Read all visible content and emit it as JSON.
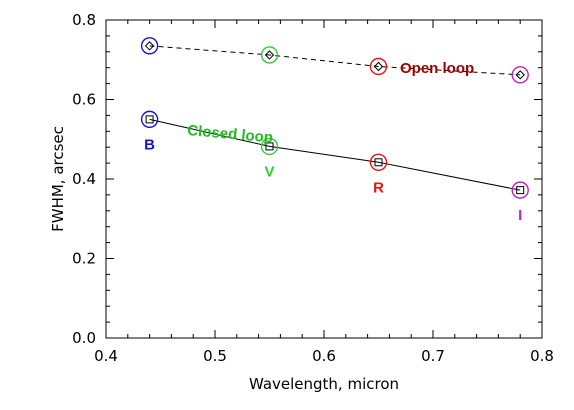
{
  "chart_data": {
    "type": "line",
    "xlabel": "Wavelength, micron",
    "ylabel": "FWHM, arcsec",
    "xlim": [
      0.4,
      0.8
    ],
    "ylim": [
      0.0,
      0.8
    ],
    "xticks": [
      "0.4",
      "0.5",
      "0.6",
      "0.7",
      "0.8"
    ],
    "yticks": [
      "0.0",
      "0.2",
      "0.4",
      "0.6",
      "0.8"
    ],
    "x": [
      0.44,
      0.55,
      0.65,
      0.78
    ],
    "series": [
      {
        "name": "Open loop",
        "values": [
          0.735,
          0.712,
          0.683,
          0.662
        ],
        "line_style": "dashed",
        "marker": "diamond",
        "label_color": "#a00000"
      },
      {
        "name": "Closed loop",
        "values": [
          0.55,
          0.482,
          0.442,
          0.372
        ],
        "line_style": "solid",
        "marker": "square",
        "label_color": "#22bb22"
      }
    ],
    "bands": [
      {
        "label": "B",
        "x": 0.44,
        "color": "#1515cc"
      },
      {
        "label": "V",
        "x": 0.55,
        "color": "#33cc33"
      },
      {
        "label": "R",
        "x": 0.65,
        "color": "#e01515"
      },
      {
        "label": "I",
        "x": 0.78,
        "color": "#c020c0"
      }
    ],
    "grid": false,
    "legend": "none"
  }
}
